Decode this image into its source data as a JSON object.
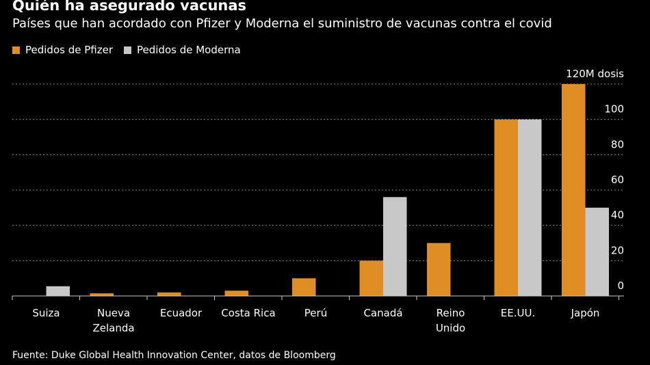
{
  "header": {
    "title": "Quién ha asegurado vacunas",
    "subtitle": "Países que han acordado con Pfizer y Moderna el suministro de vacunas contra el covid"
  },
  "footer": {
    "source": "Fuente: Duke Global Health Innovation Center, datos de Bloomberg"
  },
  "chart_data": {
    "type": "bar",
    "title": "Quién ha asegurado vacunas",
    "subtitle": "Países que han acordado con Pfizer y Moderna el suministro de vacunas contra el covid",
    "categories": [
      "Suiza",
      "Nueva Zelanda",
      "Ecuador",
      "Costa Rica",
      "Perú",
      "Canadá",
      "Reino Unido",
      "EE.UU.",
      "Japón"
    ],
    "category_lines": [
      [
        "Suiza"
      ],
      [
        "Nueva",
        "Zelanda"
      ],
      [
        "Ecuador"
      ],
      [
        "Costa Rica"
      ],
      [
        "Perú"
      ],
      [
        "Canadá"
      ],
      [
        "Reino",
        "Unido"
      ],
      [
        "EE.UU."
      ],
      [
        "Japón"
      ]
    ],
    "series": [
      {
        "name": "Pedidos de Pfizer",
        "color": "#e08d23",
        "values": [
          0,
          1.5,
          2,
          3,
          10,
          20,
          30,
          100,
          120
        ]
      },
      {
        "name": "Pedidos de Moderna",
        "color": "#c8c8c8",
        "values": [
          5.5,
          0,
          0,
          0,
          0,
          56,
          0,
          100,
          50
        ]
      }
    ],
    "ylim": [
      0,
      120
    ],
    "yticks": [
      0,
      20,
      40,
      60,
      80,
      100,
      120
    ],
    "ytick_labels": [
      "0",
      "20",
      "40",
      "60",
      "80",
      "100",
      "120M dosis"
    ],
    "grid": true,
    "legend": "top-left",
    "colors": {
      "grid": "#8a8a8a",
      "axis": "#cccccc",
      "background": "#000000"
    }
  }
}
